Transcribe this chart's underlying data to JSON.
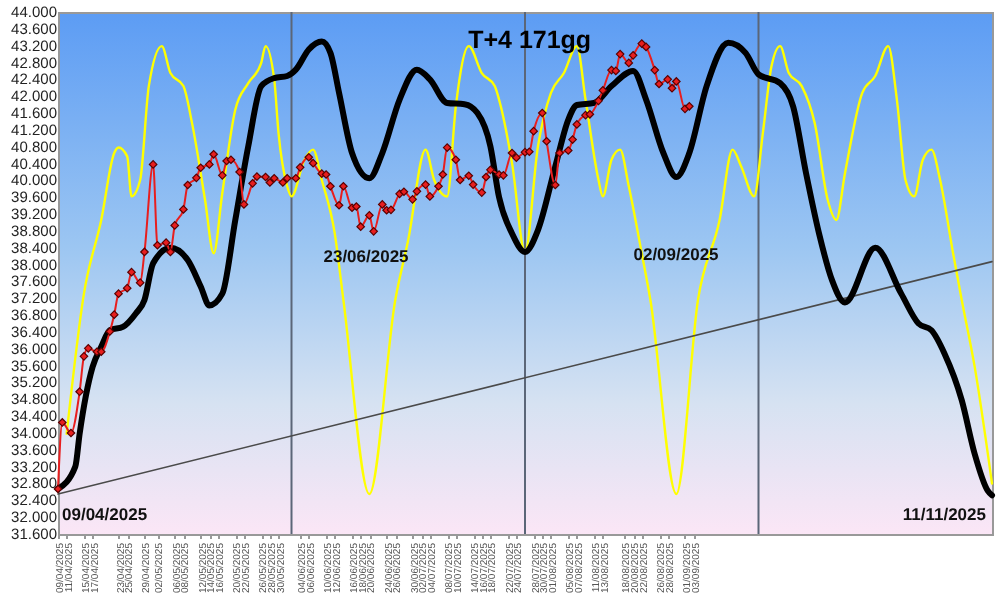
{
  "chart_data": {
    "type": "line",
    "title": "T+4 171gg",
    "xlim": [
      "2025-04-09",
      "2025-11-11"
    ],
    "xticks": [
      {
        "value": "2025-04-09",
        "label": "09/04/2025"
      },
      {
        "value": "2025-04-11",
        "label": "11/04/2025"
      },
      {
        "value": "2025-04-15",
        "label": "15/04/2025"
      },
      {
        "value": "2025-04-17",
        "label": "17/04/2025"
      },
      {
        "value": "2025-04-23",
        "label": "23/04/2025"
      },
      {
        "value": "2025-04-25",
        "label": "25/04/2025"
      },
      {
        "value": "2025-04-29",
        "label": "29/04/2025"
      },
      {
        "value": "2025-05-02",
        "label": "02/05/2025"
      },
      {
        "value": "2025-05-06",
        "label": "06/05/2025"
      },
      {
        "value": "2025-05-08",
        "label": "08/05/2025"
      },
      {
        "value": "2025-05-12",
        "label": "12/05/2025"
      },
      {
        "value": "2025-05-14",
        "label": "14/05/2025"
      },
      {
        "value": "2025-05-16",
        "label": "16/05/2025"
      },
      {
        "value": "2025-05-20",
        "label": "20/05/2025"
      },
      {
        "value": "2025-05-22",
        "label": "22/05/2025"
      },
      {
        "value": "2025-05-26",
        "label": "26/05/2025"
      },
      {
        "value": "2025-05-28",
        "label": "28/05/2025"
      },
      {
        "value": "2025-05-30",
        "label": "30/05/2025"
      },
      {
        "value": "2025-06-04",
        "label": "04/06/2025"
      },
      {
        "value": "2025-06-06",
        "label": "06/06/2025"
      },
      {
        "value": "2025-06-10",
        "label": "10/06/2025"
      },
      {
        "value": "2025-06-12",
        "label": "12/06/2025"
      },
      {
        "value": "2025-06-16",
        "label": "16/06/2025"
      },
      {
        "value": "2025-06-18",
        "label": "18/06/2025"
      },
      {
        "value": "2025-06-20",
        "label": "20/06/2025"
      },
      {
        "value": "2025-06-24",
        "label": "24/06/2025"
      },
      {
        "value": "2025-06-26",
        "label": "26/06/2025"
      },
      {
        "value": "2025-06-30",
        "label": "30/06/2025"
      },
      {
        "value": "2025-07-02",
        "label": "02/07/2025"
      },
      {
        "value": "2025-07-04",
        "label": "04/07/2025"
      },
      {
        "value": "2025-07-08",
        "label": "08/07/2025"
      },
      {
        "value": "2025-07-10",
        "label": "10/07/2025"
      },
      {
        "value": "2025-07-14",
        "label": "14/07/2025"
      },
      {
        "value": "2025-07-16",
        "label": "16/07/2025"
      },
      {
        "value": "2025-07-18",
        "label": "18/07/2025"
      },
      {
        "value": "2025-07-22",
        "label": "22/07/2025"
      },
      {
        "value": "2025-07-24",
        "label": "24/07/2025"
      },
      {
        "value": "2025-07-28",
        "label": "28/07/2025"
      },
      {
        "value": "2025-07-30",
        "label": "30/07/2025"
      },
      {
        "value": "2025-08-01",
        "label": "01/08/2025"
      },
      {
        "value": "2025-08-05",
        "label": "05/08/2025"
      },
      {
        "value": "2025-08-07",
        "label": "07/08/2025"
      },
      {
        "value": "2025-08-11",
        "label": "11/08/2025"
      },
      {
        "value": "2025-08-13",
        "label": "13/08/2025"
      },
      {
        "value": "2025-08-18",
        "label": "18/08/2025"
      },
      {
        "value": "2025-08-20",
        "label": "20/08/2025"
      },
      {
        "value": "2025-08-22",
        "label": "22/08/2025"
      },
      {
        "value": "2025-08-26",
        "label": "26/08/2025"
      },
      {
        "value": "2025-08-28",
        "label": "28/08/2025"
      },
      {
        "value": "2025-09-01",
        "label": "01/09/2025"
      },
      {
        "value": "2025-09-03",
        "label": "03/09/2025"
      }
    ],
    "ylim": [
      31.6,
      44
    ],
    "yticks": [
      {
        "value": 31.6,
        "label": "31.600"
      },
      {
        "value": 32,
        "label": "32.000"
      },
      {
        "value": 32.4,
        "label": "32.400"
      },
      {
        "value": 32.8,
        "label": "32.800"
      },
      {
        "value": 33.2,
        "label": "33.200"
      },
      {
        "value": 33.6,
        "label": "33.600"
      },
      {
        "value": 34,
        "label": "34.000"
      },
      {
        "value": 34.4,
        "label": "34.400"
      },
      {
        "value": 34.8,
        "label": "34.800"
      },
      {
        "value": 35.2,
        "label": "35.200"
      },
      {
        "value": 35.6,
        "label": "35.600"
      },
      {
        "value": 36,
        "label": "36.000"
      },
      {
        "value": 36.4,
        "label": "36.400"
      },
      {
        "value": 36.8,
        "label": "36.800"
      },
      {
        "value": 37.2,
        "label": "37.200"
      },
      {
        "value": 37.6,
        "label": "37.600"
      },
      {
        "value": 38,
        "label": "38.000"
      },
      {
        "value": 38.4,
        "label": "38.400"
      },
      {
        "value": 38.8,
        "label": "38.800"
      },
      {
        "value": 39.2,
        "label": "39.200"
      },
      {
        "value": 39.6,
        "label": "39.600"
      },
      {
        "value": 40,
        "label": "40.000"
      },
      {
        "value": 40.4,
        "label": "40.400"
      },
      {
        "value": 40.8,
        "label": "40.800"
      },
      {
        "value": 41.2,
        "label": "41.200"
      },
      {
        "value": 41.6,
        "label": "41.600"
      },
      {
        "value": 42,
        "label": "42.000"
      },
      {
        "value": 42.4,
        "label": "42.400"
      },
      {
        "value": 42.8,
        "label": "42.800"
      },
      {
        "value": 43.2,
        "label": "43.200"
      },
      {
        "value": 43.6,
        "label": "43.600"
      },
      {
        "value": 44,
        "label": "44.000"
      }
    ],
    "series": [
      {
        "color": "#ffff00",
        "x": [
          "2025-04-11",
          "2025-04-15",
          "2025-04-19",
          "2025-04-22",
          "2025-04-23",
          "2025-04-25",
          "2025-04-26",
          "2025-04-28",
          "2025-04-30",
          "2025-05-03",
          "2025-05-05",
          "2025-05-08",
          "2025-05-10",
          "2025-05-13",
          "2025-05-15",
          "2025-05-17",
          "2025-05-20",
          "2025-05-23",
          "2025-05-26",
          "2025-05-27",
          "2025-05-29",
          "2025-05-30",
          "2025-06-01",
          "2025-06-02",
          "2025-06-05",
          "2025-06-07",
          "2025-06-09",
          "2025-06-12",
          "2025-06-14",
          "2025-06-20",
          "2025-06-26",
          "2025-06-29",
          "2025-07-03",
          "2025-07-05",
          "2025-07-08",
          "2025-07-10",
          "2025-07-13",
          "2025-07-16",
          "2025-07-19",
          "2025-07-20",
          "2025-07-23",
          "2025-07-26",
          "2025-07-29",
          "2025-08-01",
          "2025-08-04",
          "2025-08-07",
          "2025-08-09",
          "2025-08-12",
          "2025-08-13",
          "2025-08-15",
          "2025-08-17",
          "2025-08-19",
          "2025-08-22",
          "2025-08-24",
          "2025-08-30",
          "2025-09-04",
          "2025-09-09",
          "2025-09-12",
          "2025-09-14",
          "2025-09-17",
          "2025-09-19",
          "2025-09-21",
          "2025-09-23",
          "2025-09-25",
          "2025-09-28",
          "2025-10-01",
          "2025-10-04",
          "2025-10-06",
          "2025-10-08",
          "2025-10-12",
          "2025-10-15",
          "2025-10-18",
          "2025-10-20",
          "2025-10-22",
          "2025-10-24",
          "2025-10-26",
          "2025-10-28",
          "2025-10-30",
          "2025-11-02",
          "2025-11-04",
          "2025-11-07",
          "2025-11-11"
        ],
        "values": [
          33.98,
          37.31,
          39.06,
          40.65,
          40.78,
          40.57,
          39.62,
          40.01,
          42.24,
          43.19,
          42.55,
          42.24,
          41.36,
          39.54,
          38.27,
          39.7,
          41.68,
          42.31,
          42.79,
          43.19,
          42.4,
          41.12,
          39.86,
          39.62,
          40.49,
          40.73,
          40.01,
          38.74,
          37.16,
          32.55,
          37.16,
          38.59,
          40.73,
          40.01,
          39.62,
          41.76,
          43.19,
          42.55,
          42.24,
          41.92,
          40.41,
          38.3,
          40.81,
          42.08,
          42.55,
          43.19,
          41.92,
          40.01,
          39.62,
          40.49,
          40.73,
          39.86,
          38.27,
          37.16,
          32.55,
          37.16,
          39.06,
          40.73,
          40.33,
          39.62,
          41.12,
          42.71,
          43.19,
          42.55,
          42.24,
          41.36,
          39.54,
          39.06,
          40.17,
          42.08,
          42.48,
          43.19,
          41.92,
          40.01,
          39.62,
          40.49,
          40.73,
          40.01,
          38.27,
          37.16,
          35.57,
          32.8
        ]
      },
      {
        "color": "#4a4a4a",
        "x": [
          "2025-04-09",
          "2025-11-11"
        ],
        "values": [
          32.55,
          38.07
        ]
      },
      {
        "color": "#000000",
        "x": [
          "2025-04-09",
          "2025-04-13",
          "2025-04-14",
          "2025-04-17",
          "2025-04-19",
          "2025-04-21",
          "2025-04-24",
          "2025-04-27",
          "2025-04-29",
          "2025-05-01",
          "2025-05-05",
          "2025-05-09",
          "2025-05-12",
          "2025-05-14",
          "2025-05-17",
          "2025-05-20",
          "2025-05-23",
          "2025-05-26",
          "2025-05-29",
          "2025-06-01",
          "2025-06-03",
          "2025-06-06",
          "2025-06-09",
          "2025-06-11",
          "2025-06-13",
          "2025-06-16",
          "2025-06-20",
          "2025-06-23",
          "2025-06-27",
          "2025-07-01",
          "2025-07-04",
          "2025-07-08",
          "2025-07-12",
          "2025-07-15",
          "2025-07-18",
          "2025-07-20",
          "2025-07-23",
          "2025-07-26",
          "2025-07-29",
          "2025-08-02",
          "2025-08-05",
          "2025-08-07",
          "2025-08-11",
          "2025-08-15",
          "2025-08-20",
          "2025-08-23",
          "2025-08-27",
          "2025-08-30",
          "2025-09-02",
          "2025-09-06",
          "2025-09-11",
          "2025-09-15",
          "2025-09-18",
          "2025-09-23",
          "2025-09-26",
          "2025-09-29",
          "2025-10-02",
          "2025-10-05",
          "2025-10-08",
          "2025-10-15",
          "2025-10-21",
          "2025-10-25",
          "2025-10-28",
          "2025-10-31",
          "2025-11-04",
          "2025-11-07",
          "2025-11-10",
          "2025-11-11"
        ],
        "values": [
          32.67,
          33.2,
          33.98,
          35.57,
          36.05,
          36.44,
          36.52,
          36.84,
          37.16,
          38.03,
          38.4,
          38.11,
          37.48,
          37.03,
          37.31,
          39.06,
          40.81,
          42.24,
          42.43,
          42.48,
          42.63,
          43.11,
          43.3,
          43.03,
          42.08,
          40.65,
          40.05,
          40.65,
          41.92,
          42.63,
          42.4,
          41.84,
          41.81,
          41.6,
          40.81,
          39.6,
          38.74,
          38.3,
          38.82,
          40.33,
          41.44,
          41.79,
          41.84,
          42.24,
          42.6,
          41.92,
          40.65,
          40.08,
          40.65,
          42.24,
          43.27,
          43.03,
          42.52,
          42.31,
          41.76,
          40.17,
          38.74,
          37.63,
          37.1,
          38.4,
          37.31,
          36.6,
          36.44,
          35.89,
          34.78,
          33.5,
          32.63,
          32.52
        ]
      },
      {
        "color": "#e81e1e",
        "marker": "diamond",
        "x": [
          "2025-04-09",
          "2025-04-10",
          "2025-04-12",
          "2025-04-14",
          "2025-04-15",
          "2025-04-16",
          "2025-04-18",
          "2025-04-19",
          "2025-04-21",
          "2025-04-22",
          "2025-04-23",
          "2025-04-25",
          "2025-04-26",
          "2025-04-28",
          "2025-04-29",
          "2025-05-01",
          "2025-05-02",
          "2025-05-04",
          "2025-05-05",
          "2025-05-06",
          "2025-05-08",
          "2025-05-09",
          "2025-05-11",
          "2025-05-12",
          "2025-05-14",
          "2025-05-15",
          "2025-05-17",
          "2025-05-18",
          "2025-05-19",
          "2025-05-21",
          "2025-05-22",
          "2025-05-24",
          "2025-05-25",
          "2025-05-27",
          "2025-05-28",
          "2025-05-29",
          "2025-05-31",
          "2025-06-01",
          "2025-06-03",
          "2025-06-04",
          "2025-06-06",
          "2025-06-07",
          "2025-06-09",
          "2025-06-10",
          "2025-06-11",
          "2025-06-13",
          "2025-06-14",
          "2025-06-16",
          "2025-06-17",
          "2025-06-18",
          "2025-06-20",
          "2025-06-21",
          "2025-06-23",
          "2025-06-24",
          "2025-06-25",
          "2025-06-27",
          "2025-06-28",
          "2025-06-30",
          "2025-07-01",
          "2025-07-03",
          "2025-07-04",
          "2025-07-06",
          "2025-07-07",
          "2025-07-08",
          "2025-07-10",
          "2025-07-11",
          "2025-07-13",
          "2025-07-14",
          "2025-07-16",
          "2025-07-17",
          "2025-07-18",
          "2025-07-20",
          "2025-07-21",
          "2025-07-23",
          "2025-07-24",
          "2025-07-26",
          "2025-07-27",
          "2025-07-28",
          "2025-07-30",
          "2025-07-31",
          "2025-08-02",
          "2025-08-03",
          "2025-08-05",
          "2025-08-06",
          "2025-08-07",
          "2025-08-09",
          "2025-08-10",
          "2025-08-12",
          "2025-08-13",
          "2025-08-15",
          "2025-08-16",
          "2025-08-17",
          "2025-08-19",
          "2025-08-20",
          "2025-08-22",
          "2025-08-23",
          "2025-08-25",
          "2025-08-26",
          "2025-08-28",
          "2025-08-29",
          "2025-08-30",
          "2025-09-01",
          "2025-09-02"
        ],
        "values": [
          32.67,
          34.25,
          34.0,
          34.98,
          35.82,
          36.01,
          35.93,
          35.93,
          36.41,
          36.81,
          37.31,
          37.44,
          37.82,
          37.57,
          38.3,
          40.38,
          38.46,
          38.52,
          38.3,
          38.93,
          39.31,
          39.89,
          40.06,
          40.3,
          40.38,
          40.62,
          40.12,
          40.46,
          40.49,
          40.2,
          39.43,
          39.93,
          40.09,
          40.08,
          39.95,
          40.05,
          39.95,
          40.05,
          40.05,
          40.31,
          40.55,
          40.41,
          40.16,
          40.14,
          39.86,
          39.41,
          39.86,
          39.35,
          39.38,
          38.9,
          39.17,
          38.79,
          39.43,
          39.29,
          39.3,
          39.68,
          39.73,
          39.55,
          39.74,
          39.9,
          39.62,
          39.86,
          40.14,
          40.78,
          40.49,
          40.01,
          40.11,
          39.9,
          39.71,
          40.08,
          40.25,
          40.14,
          40.12,
          40.65,
          40.54,
          40.67,
          40.68,
          41.17,
          41.6,
          40.93,
          39.89,
          40.65,
          40.71,
          40.97,
          41.33,
          41.55,
          41.57,
          41.89,
          42.14,
          42.62,
          42.6,
          43.0,
          42.79,
          42.97,
          43.25,
          43.17,
          42.62,
          42.29,
          42.4,
          42.19,
          42.35,
          41.7,
          41.76
        ]
      }
    ],
    "ref_lines": [
      {
        "axis": "x",
        "value": "2025-06-02",
        "color": "#5b6678"
      },
      {
        "axis": "x",
        "value": "2025-07-26",
        "color": "#5b6678"
      },
      {
        "axis": "x",
        "value": "2025-09-18",
        "color": "#5b6678"
      }
    ],
    "annotations": [
      "09/04/2025",
      "23/06/2025",
      "02/09/2025",
      "11/11/2025"
    ]
  }
}
